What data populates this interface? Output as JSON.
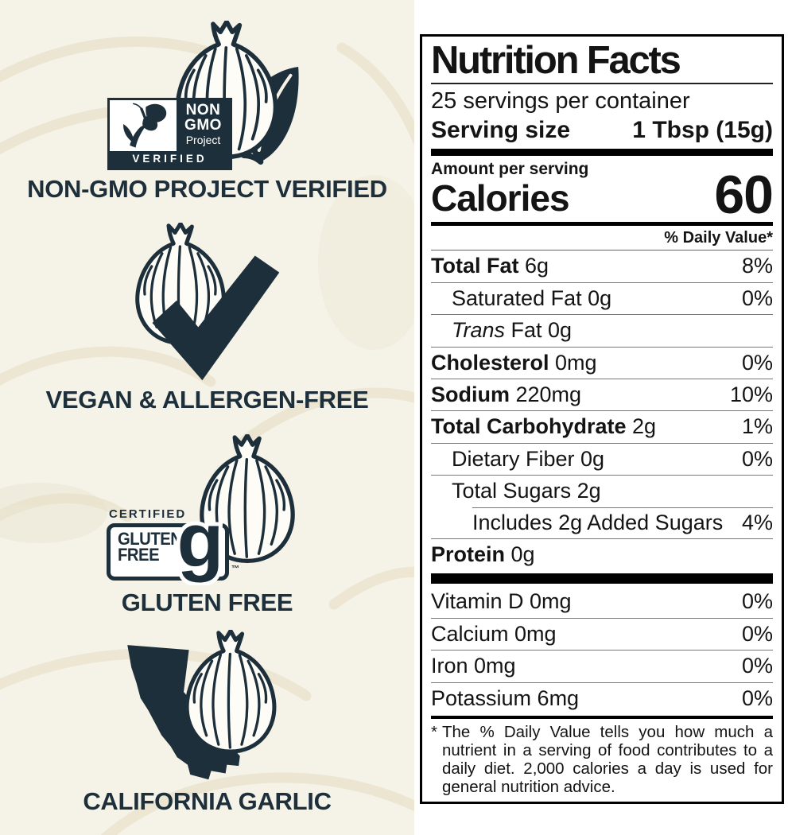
{
  "colors": {
    "accent": "#1d2f3a",
    "cream": "#f5f2e7",
    "pattern": "#e8e1cc",
    "label_border": "#000000"
  },
  "badges": [
    {
      "caption": "NON-GMO PROJECT VERIFIED",
      "seal": {
        "line1": "NON",
        "line2": "GMO",
        "line3": "Project",
        "verified": "VERIFIED"
      }
    },
    {
      "caption": "VEGAN & ALLERGEN-FREE"
    },
    {
      "caption": "GLUTEN FREE",
      "seal": {
        "certified": "CERTIFIED",
        "word1": "GLUTEN",
        "word2": "FREE",
        "glyph": "g",
        "tm": "™"
      }
    },
    {
      "caption": "CALIFORNIA GARLIC"
    }
  ],
  "nutrition": {
    "title": "Nutrition Facts",
    "servings": "25 servings per container",
    "serving_size_label": "Serving size",
    "serving_size_value": "1 Tbsp (15g)",
    "amount_per_serving": "Amount per serving",
    "calories_label": "Calories",
    "calories_value": "60",
    "dv_header": "% Daily Value*",
    "rows": [
      {
        "parts": [
          {
            "text": "Total Fat",
            "bold": true
          },
          {
            "text": " 6g"
          }
        ],
        "dv": "8%",
        "indent": 0,
        "sep": "none"
      },
      {
        "parts": [
          {
            "text": "Saturated Fat 0g"
          }
        ],
        "dv": "0%",
        "indent": 1,
        "sep": "full"
      },
      {
        "parts": [
          {
            "text": "Trans",
            "italic": true
          },
          {
            "text": " Fat 0g"
          }
        ],
        "dv": "",
        "indent": 1,
        "sep": "full"
      },
      {
        "parts": [
          {
            "text": "Cholesterol",
            "bold": true
          },
          {
            "text": " 0mg"
          }
        ],
        "dv": "0%",
        "indent": 0,
        "sep": "full"
      },
      {
        "parts": [
          {
            "text": "Sodium",
            "bold": true
          },
          {
            "text": " 220mg"
          }
        ],
        "dv": "10%",
        "indent": 0,
        "sep": "full"
      },
      {
        "parts": [
          {
            "text": "Total Carbohydrate",
            "bold": true
          },
          {
            "text": " 2g"
          }
        ],
        "dv": "1%",
        "indent": 0,
        "sep": "full"
      },
      {
        "parts": [
          {
            "text": "Dietary Fiber 0g"
          }
        ],
        "dv": "0%",
        "indent": 1,
        "sep": "full"
      },
      {
        "parts": [
          {
            "text": "Total Sugars 2g"
          }
        ],
        "dv": "",
        "indent": 1,
        "sep": "full"
      },
      {
        "parts": [
          {
            "text": "Includes 2g Added Sugars"
          }
        ],
        "dv": "4%",
        "indent": 2,
        "sep": "indent"
      },
      {
        "parts": [
          {
            "text": "Protein",
            "bold": true
          },
          {
            "text": " 0g"
          }
        ],
        "dv": "",
        "indent": 0,
        "sep": "full"
      }
    ],
    "vitamins": [
      {
        "parts": [
          {
            "text": "Vitamin D 0mg"
          }
        ],
        "dv": "0%",
        "indent": 0,
        "sep": "none"
      },
      {
        "parts": [
          {
            "text": "Calcium 0mg"
          }
        ],
        "dv": "0%",
        "indent": 0,
        "sep": "full"
      },
      {
        "parts": [
          {
            "text": "Iron 0mg"
          }
        ],
        "dv": "0%",
        "indent": 0,
        "sep": "full"
      },
      {
        "parts": [
          {
            "text": "Potassium 6mg"
          }
        ],
        "dv": "0%",
        "indent": 0,
        "sep": "full"
      }
    ],
    "footnote_mark": "*",
    "footnote": "The % Daily Value tells you how much a nutrient in a serving of food contributes to a daily diet. 2,000 calories a day is used for general nutrition advice."
  }
}
